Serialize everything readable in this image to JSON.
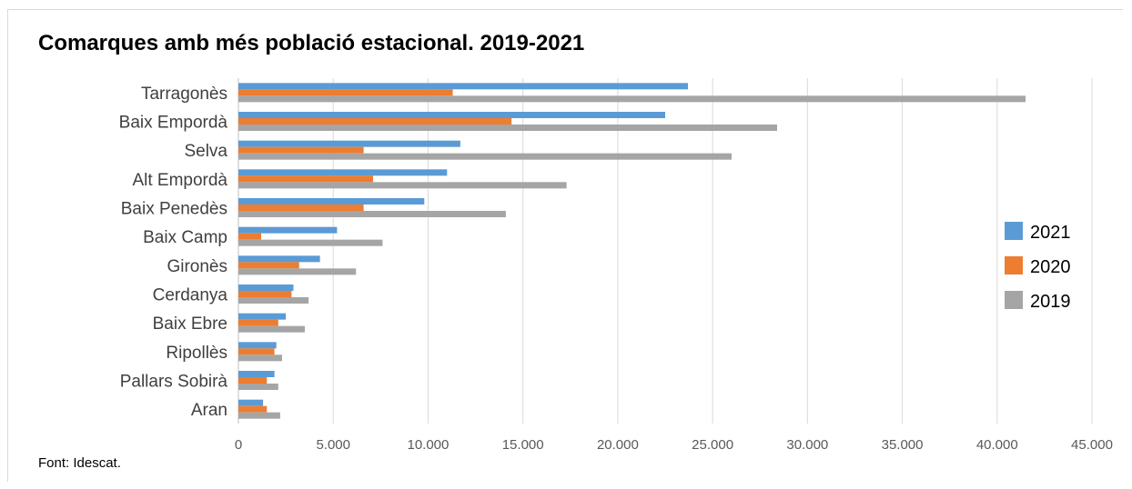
{
  "chart_data": {
    "type": "bar",
    "orientation": "horizontal",
    "title": "Comarques amb més població estacional. 2019-2021",
    "source": "Font: Idescat.",
    "categories": [
      "Tarragonès",
      "Baix Empordà",
      "Selva",
      "Alt Empordà",
      "Baix Penedès",
      "Baix Camp",
      "Gironès",
      "Cerdanya",
      "Baix Ebre",
      "Ripollès",
      "Pallars Sobirà",
      "Aran"
    ],
    "series": [
      {
        "name": "2021",
        "color": "#5b9bd5",
        "values": [
          23700,
          22500,
          11700,
          11000,
          9800,
          5200,
          4300,
          2900,
          2500,
          2000,
          1900,
          1300
        ]
      },
      {
        "name": "2020",
        "color": "#ed7d31",
        "values": [
          11300,
          14400,
          6600,
          7100,
          6600,
          1200,
          3200,
          2800,
          2100,
          1900,
          1500,
          1500
        ]
      },
      {
        "name": "2019",
        "color": "#a5a5a5",
        "values": [
          41500,
          28400,
          26000,
          17300,
          14100,
          7600,
          6200,
          3700,
          3500,
          2300,
          2100,
          2200
        ]
      }
    ],
    "xlim": [
      0,
      45000
    ],
    "xticks": [
      0,
      5000,
      10000,
      15000,
      20000,
      25000,
      30000,
      35000,
      40000,
      45000
    ],
    "xtick_labels": [
      "0",
      "5.000",
      "10.000",
      "15.000",
      "20.000",
      "25.000",
      "30.000",
      "35.000",
      "40.000",
      "45.000"
    ],
    "grid": "vertical",
    "legend_position": "right",
    "xlabel": "",
    "ylabel": ""
  }
}
